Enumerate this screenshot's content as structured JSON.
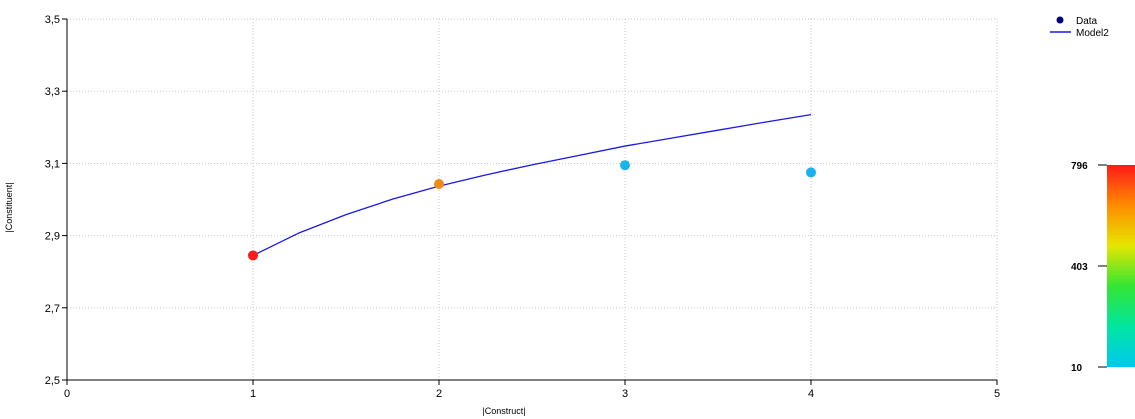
{
  "chart_data": {
    "type": "scatter",
    "title": "",
    "xlabel": "|Construct|",
    "ylabel": "|Constituent|",
    "xlim": [
      0,
      5
    ],
    "ylim": [
      2.5,
      3.5
    ],
    "x_ticks": [
      0,
      1,
      2,
      3,
      4,
      5
    ],
    "x_tick_labels": [
      "0",
      "1",
      "2",
      "3",
      "4",
      "5"
    ],
    "y_ticks": [
      2.5,
      2.7,
      2.9,
      3.1,
      3.3,
      3.5
    ],
    "y_tick_labels": [
      "2,5",
      "2,7",
      "2,9",
      "3,1",
      "3,3",
      "3,5"
    ],
    "grid": true,
    "legend_position": "top-right",
    "series": [
      {
        "name": "Data",
        "kind": "scatter",
        "x": [
          1,
          2,
          3,
          4
        ],
        "y": [
          2.845,
          3.043,
          3.095,
          3.075
        ],
        "counts": [
          796,
          620,
          120,
          115
        ],
        "colors": [
          "#ff1a1a",
          "#ef8c17",
          "#1ab4ec",
          "#18b2ee"
        ],
        "legend_color": "#000080"
      },
      {
        "name": "Model2",
        "kind": "line",
        "x": [
          1,
          1.25,
          1.5,
          1.75,
          2,
          2.25,
          2.5,
          2.75,
          3,
          3.25,
          3.5,
          3.75,
          4
        ],
        "y": [
          2.845,
          2.908,
          2.958,
          3.001,
          3.037,
          3.068,
          3.096,
          3.122,
          3.148,
          3.17,
          3.192,
          3.214,
          3.235
        ],
        "color": "#1a1ae6"
      }
    ],
    "colorbar": {
      "min": 10,
      "mid": 403,
      "max": 796,
      "labels": [
        "796",
        "403",
        "10"
      ],
      "colors": [
        "#ff1a1a",
        "#ff8c00",
        "#e6e600",
        "#33e633",
        "#00e6a0",
        "#00c8f0"
      ]
    }
  }
}
